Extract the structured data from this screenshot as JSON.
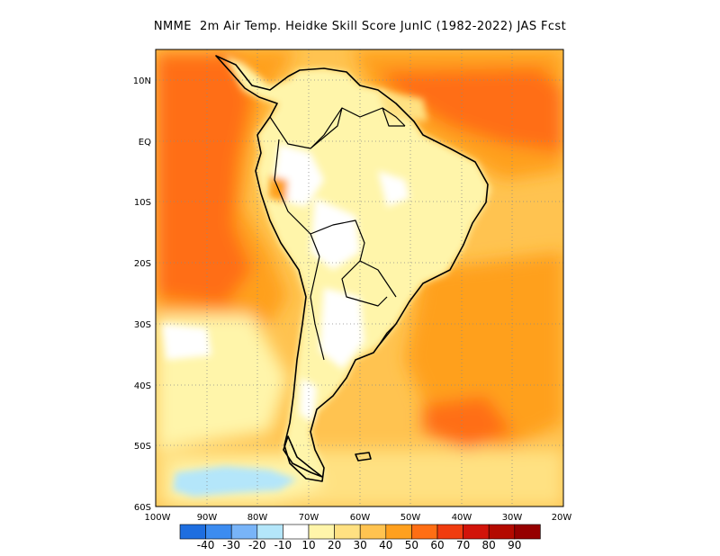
{
  "title": "NMME  2m Air Temp. Heidke Skill Score JunIC (1982-2022) JAS Fcst",
  "axes": {
    "lat_ticks": [
      "10N",
      "EQ",
      "10S",
      "20S",
      "30S",
      "40S",
      "50S",
      "60S"
    ],
    "lon_ticks": [
      "100W",
      "90W",
      "80W",
      "70W",
      "60W",
      "50W",
      "40W",
      "30W",
      "20W"
    ],
    "lat_range": [
      -60,
      15
    ],
    "lon_range": [
      -100,
      -20
    ],
    "grid": "dotted"
  },
  "colorbar": {
    "labels": [
      "-40",
      "-30",
      "-20",
      "-10",
      "10",
      "20",
      "30",
      "40",
      "50",
      "60",
      "70",
      "80",
      "90"
    ],
    "colors": [
      "#1e6ee0",
      "#3c8cf0",
      "#78b4f8",
      "#b4e6fa",
      "#ffffff",
      "#fff5aa",
      "#ffe182",
      "#ffc350",
      "#ffa01e",
      "#ff6e14",
      "#f03c0f",
      "#d2140a",
      "#b40a00",
      "#960000"
    ]
  },
  "map_colors": {
    "ocean_high": "#ff6e14",
    "ocean_mid": "#ffa01e",
    "ocean_low": "#ffc350",
    "land_low": "#fff5aa",
    "neutral": "#ffffff",
    "negative": "#b4e6fa",
    "coast": "#000000"
  }
}
